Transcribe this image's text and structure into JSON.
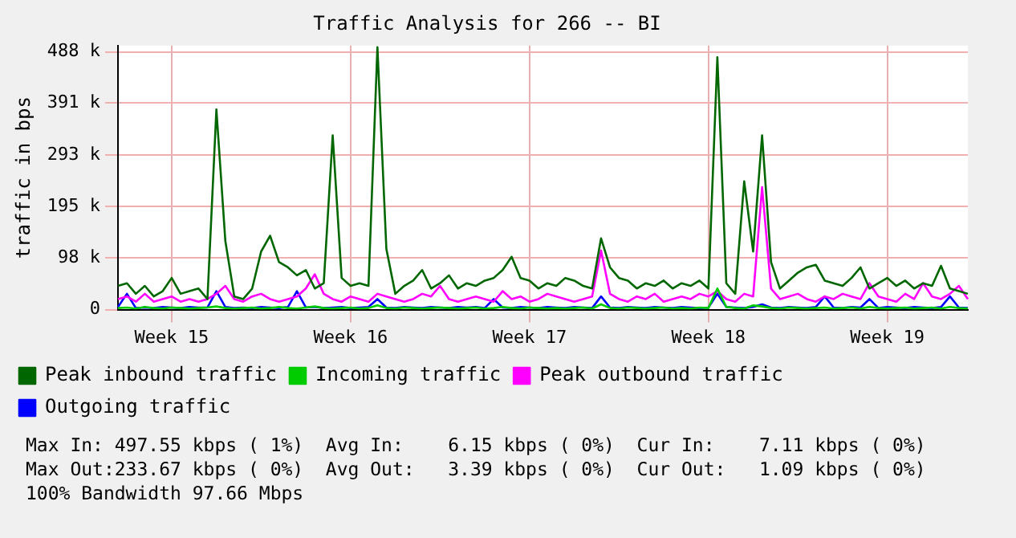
{
  "chart_data": {
    "type": "line",
    "title": "Traffic Analysis for 266 -- BI",
    "ylabel": "traffic in bps",
    "categories": [
      null,
      null,
      null,
      null,
      null,
      null,
      "Week 15",
      null,
      null,
      null,
      null,
      null,
      null,
      null,
      null,
      null,
      null,
      null,
      null,
      null,
      null,
      null,
      null,
      null,
      null,
      null,
      "Week 16",
      null,
      null,
      null,
      null,
      null,
      null,
      null,
      null,
      null,
      null,
      null,
      null,
      null,
      null,
      null,
      null,
      null,
      null,
      null,
      "Week 17",
      null,
      null,
      null,
      null,
      null,
      null,
      null,
      null,
      null,
      null,
      null,
      null,
      null,
      null,
      null,
      null,
      null,
      null,
      null,
      "Week 18",
      null,
      null,
      null,
      null,
      null,
      null,
      null,
      null,
      null,
      null,
      null,
      null,
      null,
      null,
      null,
      null,
      null,
      null,
      null,
      "Week 19",
      null,
      null,
      null,
      null,
      null,
      null,
      null,
      null,
      null
    ],
    "ylim": [
      0,
      500
    ],
    "yticks": [
      {
        "value": 0,
        "label": "0"
      },
      {
        "value": 98,
        "label": "98 k"
      },
      {
        "value": 195,
        "label": "195 k"
      },
      {
        "value": 293,
        "label": "293 k"
      },
      {
        "value": 391,
        "label": "391 k"
      },
      {
        "value": 488,
        "label": "488 k"
      }
    ],
    "grid": true,
    "legend": "bottom left",
    "marker": "none",
    "line_style": "solid",
    "series": [
      {
        "name": "Peak inbound traffic",
        "color": "#006600",
        "values": [
          45,
          50,
          30,
          45,
          25,
          35,
          60,
          30,
          35,
          40,
          20,
          379,
          130,
          25,
          20,
          40,
          110,
          140,
          90,
          80,
          65,
          75,
          40,
          50,
          330,
          60,
          45,
          50,
          45,
          497,
          115,
          30,
          45,
          55,
          75,
          40,
          50,
          65,
          40,
          50,
          45,
          55,
          60,
          75,
          100,
          60,
          55,
          40,
          50,
          45,
          60,
          55,
          45,
          40,
          135,
          80,
          60,
          55,
          40,
          50,
          45,
          55,
          40,
          50,
          45,
          55,
          40,
          478,
          50,
          30,
          243,
          110,
          330,
          90,
          40,
          55,
          70,
          80,
          85,
          55,
          50,
          45,
          60,
          80,
          40,
          50,
          60,
          45,
          55,
          40,
          50,
          45,
          83,
          40,
          35,
          30
        ]
      },
      {
        "name": "Incoming traffic",
        "color": "#00cc00",
        "values": [
          3,
          4,
          2,
          5,
          3,
          2,
          4,
          3,
          2,
          3,
          4,
          6,
          3,
          2,
          3,
          4,
          2,
          3,
          5,
          3,
          2,
          4,
          6,
          3,
          2,
          3,
          4,
          2,
          3,
          8,
          3,
          2,
          4,
          3,
          2,
          3,
          4,
          3,
          2,
          3,
          4,
          2,
          3,
          5,
          3,
          2,
          4,
          3,
          2,
          3,
          2,
          3,
          4,
          2,
          10,
          3,
          2,
          4,
          3,
          2,
          3,
          4,
          2,
          3,
          2,
          4,
          3,
          40,
          5,
          3,
          2,
          8,
          6,
          3,
          2,
          4,
          3,
          2,
          3,
          4,
          2,
          3,
          4,
          2,
          5,
          3,
          2,
          3,
          4,
          2,
          3,
          4,
          2,
          5,
          3,
          2
        ]
      },
      {
        "name": "Peak outbound traffic",
        "color": "#ff00ff",
        "values": [
          20,
          25,
          15,
          30,
          15,
          20,
          25,
          15,
          20,
          15,
          20,
          30,
          45,
          20,
          15,
          25,
          30,
          20,
          15,
          20,
          25,
          40,
          67,
          30,
          20,
          15,
          25,
          20,
          15,
          30,
          25,
          20,
          15,
          20,
          30,
          25,
          45,
          20,
          15,
          20,
          25,
          20,
          15,
          35,
          20,
          25,
          15,
          20,
          30,
          25,
          20,
          15,
          20,
          25,
          112,
          30,
          20,
          15,
          25,
          20,
          30,
          15,
          20,
          25,
          20,
          30,
          25,
          35,
          20,
          15,
          30,
          25,
          232,
          40,
          20,
          25,
          30,
          20,
          15,
          25,
          20,
          30,
          25,
          20,
          50,
          25,
          20,
          15,
          30,
          20,
          50,
          25,
          20,
          30,
          45,
          20
        ]
      },
      {
        "name": "Outgoing traffic",
        "color": "#0000ff",
        "values": [
          5,
          30,
          3,
          4,
          3,
          5,
          4,
          3,
          5,
          4,
          4,
          35,
          5,
          3,
          4,
          3,
          5,
          4,
          3,
          5,
          35,
          4,
          5,
          3,
          4,
          5,
          3,
          4,
          5,
          20,
          4,
          3,
          5,
          4,
          3,
          5,
          4,
          3,
          5,
          4,
          5,
          3,
          20,
          4,
          3,
          5,
          4,
          3,
          5,
          4,
          3,
          5,
          4,
          3,
          25,
          4,
          3,
          5,
          4,
          3,
          5,
          4,
          3,
          5,
          4,
          3,
          4,
          30,
          5,
          4,
          3,
          5,
          10,
          4,
          3,
          5,
          4,
          3,
          5,
          25,
          4,
          3,
          5,
          4,
          20,
          3,
          5,
          4,
          3,
          5,
          4,
          3,
          5,
          25,
          4,
          3
        ]
      }
    ],
    "annotations": [
      "Max In: 497.55 kbps ( 1%)  Avg In:    6.15 kbps ( 0%)  Cur In:    7.11 kbps ( 0%)",
      "Max Out:233.67 kbps ( 0%)  Avg Out:   3.39 kbps ( 0%)  Cur Out:   1.09 kbps ( 0%)",
      "100% Bandwidth 97.66 Mbps"
    ]
  }
}
